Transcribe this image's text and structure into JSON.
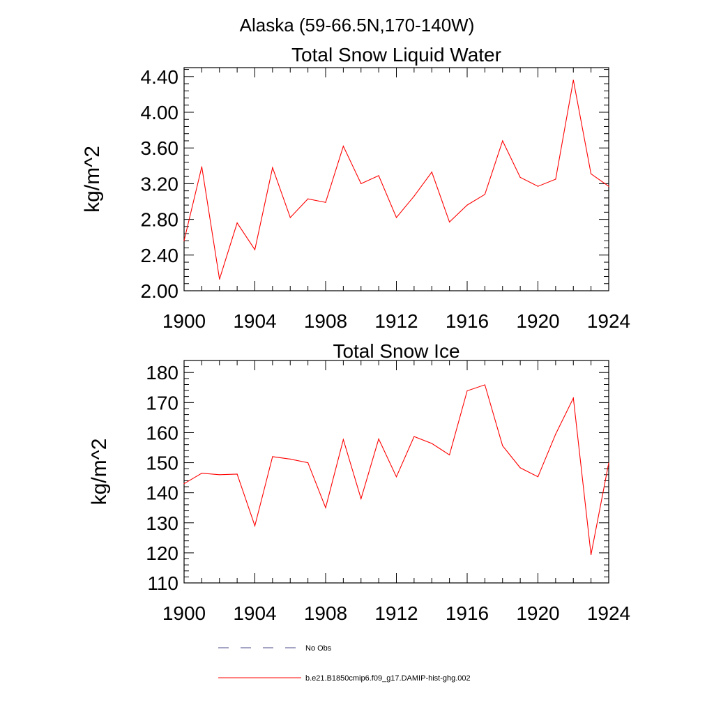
{
  "figure": {
    "title": "Alaska (59-66.5N,170-140W)"
  },
  "chart_data": [
    {
      "type": "line",
      "title": "Total Snow Liquid Water",
      "xlabel": "",
      "ylabel": "kg/m^2",
      "xlim": [
        1900,
        1924
      ],
      "ylim": [
        2.0,
        4.5
      ],
      "x_ticks": [
        1900,
        1904,
        1908,
        1912,
        1916,
        1920,
        1924
      ],
      "x_tick_labels": [
        "1900",
        "1904",
        "1908",
        "1912",
        "1916",
        "1920",
        "1924"
      ],
      "y_ticks": [
        2.0,
        2.4,
        2.8,
        3.2,
        3.6,
        4.0,
        4.4
      ],
      "y_tick_labels": [
        "2.00",
        "2.40",
        "2.80",
        "3.20",
        "3.60",
        "4.00",
        "4.40"
      ],
      "grid": false,
      "x": [
        1900,
        1901,
        1902,
        1903,
        1904,
        1905,
        1906,
        1907,
        1908,
        1909,
        1910,
        1911,
        1912,
        1913,
        1914,
        1915,
        1916,
        1917,
        1918,
        1919,
        1920,
        1921,
        1922,
        1923,
        1924
      ],
      "series": [
        {
          "name": "b.e21.B1850cmip6.f09_g17.DAMIP-hist-ghg.002",
          "color": "#ff0000",
          "values": [
            2.56,
            3.39,
            2.13,
            2.76,
            2.46,
            3.38,
            2.82,
            3.03,
            2.99,
            3.62,
            3.2,
            3.29,
            2.82,
            3.06,
            3.33,
            2.77,
            2.96,
            3.08,
            3.68,
            3.27,
            3.17,
            3.25,
            4.36,
            3.31,
            3.17
          ]
        }
      ]
    },
    {
      "type": "line",
      "title": "Total Snow Ice",
      "xlabel": "",
      "ylabel": "kg/m^2",
      "xlim": [
        1900,
        1924
      ],
      "ylim": [
        110,
        184
      ],
      "x_ticks": [
        1900,
        1904,
        1908,
        1912,
        1916,
        1920,
        1924
      ],
      "x_tick_labels": [
        "1900",
        "1904",
        "1908",
        "1912",
        "1916",
        "1920",
        "1924"
      ],
      "y_ticks": [
        110,
        120,
        130,
        140,
        150,
        160,
        170,
        180
      ],
      "y_tick_labels": [
        "110",
        "120",
        "130",
        "140",
        "150",
        "160",
        "170",
        "180"
      ],
      "grid": false,
      "x": [
        1900,
        1901,
        1902,
        1903,
        1904,
        1905,
        1906,
        1907,
        1908,
        1909,
        1910,
        1911,
        1912,
        1913,
        1914,
        1915,
        1916,
        1917,
        1918,
        1919,
        1920,
        1921,
        1922,
        1923,
        1924
      ],
      "series": [
        {
          "name": "b.e21.B1850cmip6.f09_g17.DAMIP-hist-ghg.002",
          "color": "#ff0000",
          "values": [
            143.0,
            146.5,
            146.0,
            146.2,
            129.0,
            152.0,
            151.2,
            150.0,
            135.0,
            157.7,
            138.0,
            157.9,
            145.3,
            158.7,
            156.4,
            152.6,
            173.9,
            175.9,
            155.6,
            148.3,
            145.3,
            159.5,
            171.5,
            119.4,
            149.9
          ]
        }
      ]
    }
  ],
  "legend": {
    "placement": "bottom",
    "items": [
      {
        "label": "No Obs",
        "style": "dashed",
        "color": "#4a4a8a"
      },
      {
        "label": "b.e21.B1850cmip6.f09_g17.DAMIP-hist-ghg.002",
        "style": "solid",
        "color": "#ff0000"
      }
    ]
  }
}
